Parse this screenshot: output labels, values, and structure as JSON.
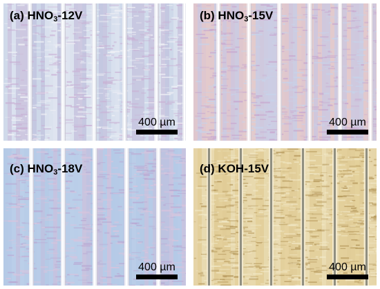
{
  "panels": [
    {
      "id": "a",
      "label_prefix": "(a) HNO",
      "label_sub": "3",
      "label_suffix": "-12V",
      "scale_text": "400 µm",
      "colors": {
        "base": "#b8c8e2",
        "stripe_a": "#d9c9e0",
        "stripe_b": "#f0f1f6",
        "streak": "#c9b0d4",
        "divider": "#edeef3"
      }
    },
    {
      "id": "b",
      "label_prefix": "(b) HNO",
      "label_sub": "3",
      "label_suffix": "-15V",
      "scale_text": "400 µm",
      "colors": {
        "base": "#d6c0d4",
        "stripe_a": "#e9cfc8",
        "stripe_b": "#c7d3ea",
        "streak": "#c8a8cf",
        "divider": "#f3eef0"
      }
    },
    {
      "id": "c",
      "label_prefix": "(c) HNO",
      "label_sub": "3",
      "label_suffix": "-18V",
      "scale_text": "400 µm",
      "colors": {
        "base": "#adc3e3",
        "stripe_a": "#c2d5ec",
        "stripe_b": "#d9c4dd",
        "streak": "#b9a9d3",
        "divider": "#f4f6f8"
      }
    },
    {
      "id": "d",
      "label_prefix": "(d) KOH-15V",
      "label_sub": "",
      "label_suffix": "",
      "scale_text": "400 µm",
      "colors": {
        "base": "#dcc690",
        "stripe_a": "#ead9a6",
        "stripe_b": "#f1e7c4",
        "streak": "#b79a5e",
        "divider": "#8a8a7c"
      }
    }
  ]
}
